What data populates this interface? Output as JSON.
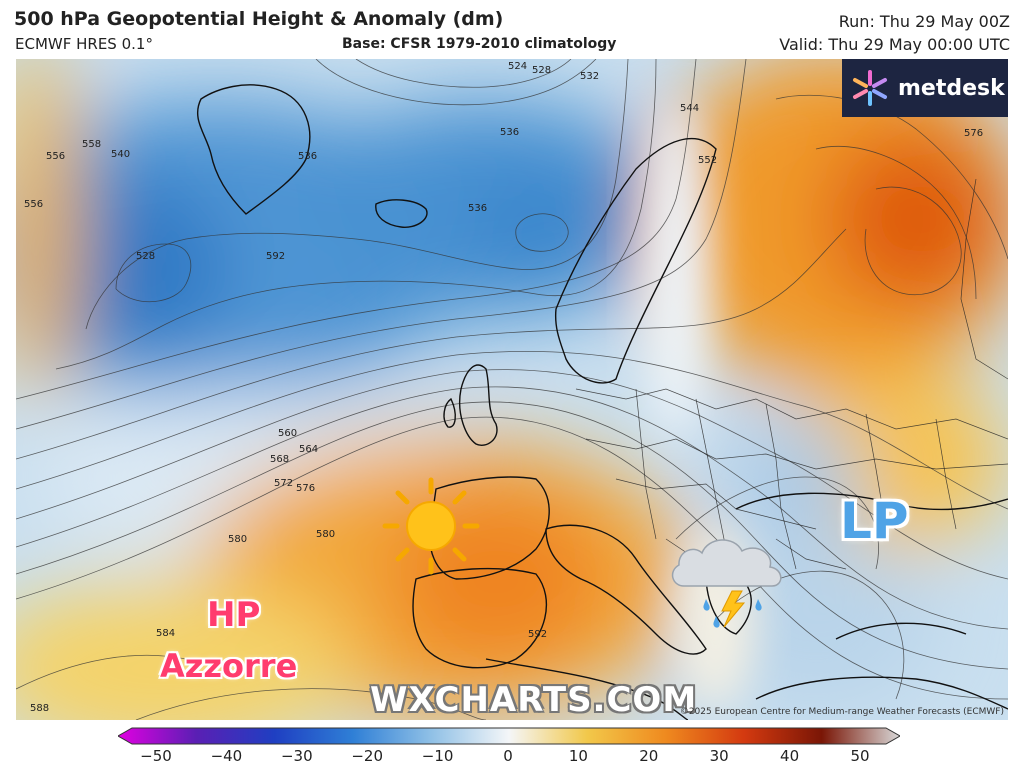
{
  "header": {
    "title": "500 hPa Geopotential Height & Anomaly (dm)",
    "model": "ECMWF HRES 0.1°",
    "base": "Base: CFSR 1979-2010 climatology",
    "run": "Run: Thu 29 May 00Z",
    "valid": "Valid: Thu 29 May 00:00 UTC"
  },
  "logo": {
    "text": "metdesk"
  },
  "map": {
    "labels": {
      "hp": "HP",
      "azzorre": "Azzorre",
      "lp": "LP"
    },
    "watermark": "WXCHARTS.COM",
    "copyright": "©2025 European Centre for Medium-range Weather Forecasts (ECMWF)",
    "contour_labels": [
      "524",
      "528",
      "532",
      "536",
      "536",
      "536",
      "540",
      "544",
      "552",
      "556",
      "558",
      "560",
      "564",
      "568",
      "572",
      "576",
      "576",
      "580",
      "580",
      "584",
      "588",
      "592",
      "592",
      "528",
      "556"
    ],
    "icons": [
      "sun-icon",
      "storm-cloud-icon"
    ]
  },
  "colorbar": {
    "ticks": [
      "−50",
      "−40",
      "−30",
      "−20",
      "−10",
      "0",
      "10",
      "20",
      "30",
      "40",
      "50"
    ],
    "colors": [
      "#e100e1",
      "#5a1fb4",
      "#1f3fc2",
      "#2f7fd6",
      "#8fc0e6",
      "#f4f6f8",
      "#f2c84a",
      "#ef8a1f",
      "#d43a10",
      "#7a1606",
      "#d8d8d8"
    ]
  }
}
